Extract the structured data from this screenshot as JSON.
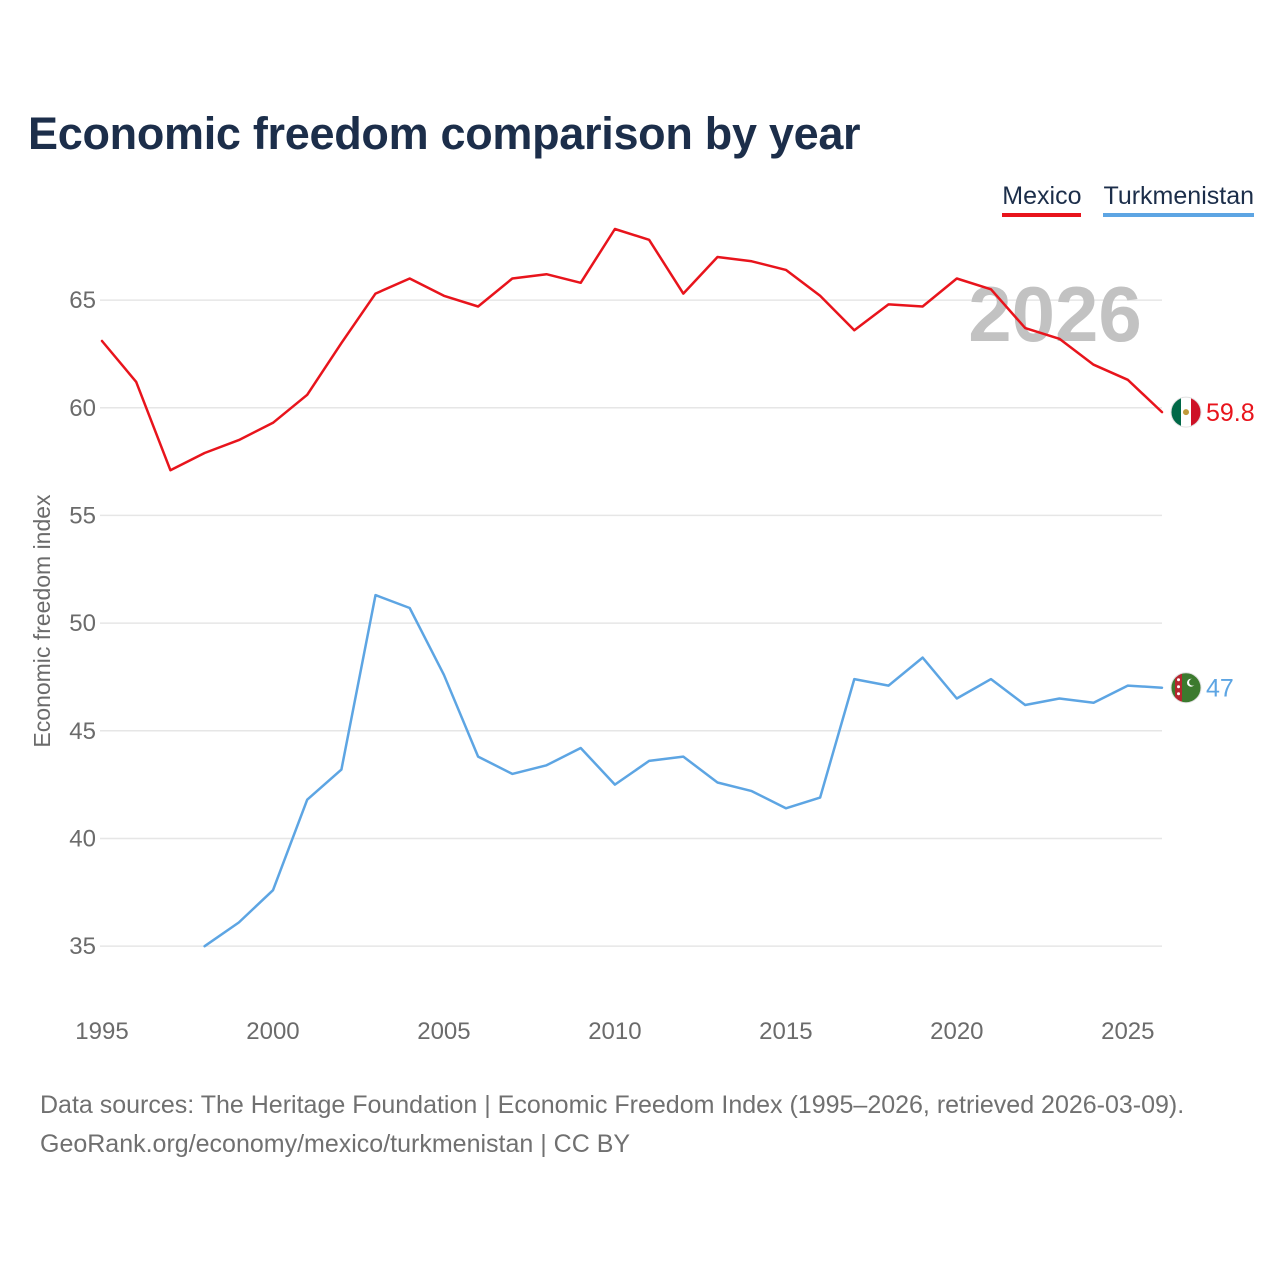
{
  "header": {
    "title": "Economic freedom comparison by year"
  },
  "legend": [
    {
      "label": "Mexico",
      "color": "#e8141c"
    },
    {
      "label": "Turkmenistan",
      "color": "#5da5e3"
    }
  ],
  "colors": {
    "mexico": "#e8141c",
    "turkmenistan": "#5da5e3",
    "grid": "#e6e6e6",
    "axis_text": "#6b6b6b",
    "title": "#1c2e4a"
  },
  "icons": {
    "mexico_flag": "mexico-flag-icon",
    "turkmenistan_flag": "turkmenistan-flag-icon"
  },
  "chart_data": {
    "type": "line",
    "title": "Economic freedom comparison by year",
    "xlabel": "",
    "ylabel": "Economic freedom index",
    "xlim": [
      1995,
      2026
    ],
    "ylim": [
      32.5,
      67
    ],
    "x_ticks": [
      1995,
      2000,
      2005,
      2010,
      2015,
      2020,
      2025
    ],
    "y_ticks": [
      35,
      40,
      45,
      50,
      55,
      60,
      65
    ],
    "grid": true,
    "year_indicator": "2026",
    "series": [
      {
        "name": "Mexico",
        "color": "#e8141c",
        "end_label": "59.8",
        "x": [
          1995,
          1996,
          1997,
          1998,
          1999,
          2000,
          2001,
          2002,
          2003,
          2004,
          2005,
          2006,
          2007,
          2008,
          2009,
          2010,
          2011,
          2012,
          2013,
          2014,
          2015,
          2016,
          2017,
          2018,
          2019,
          2020,
          2021,
          2022,
          2023,
          2024,
          2025,
          2026
        ],
        "values": [
          63.1,
          61.2,
          57.1,
          57.9,
          58.5,
          59.3,
          60.6,
          63.0,
          65.3,
          66.0,
          65.2,
          64.7,
          66.0,
          66.2,
          65.8,
          68.3,
          67.8,
          65.3,
          67.0,
          66.8,
          66.4,
          65.2,
          63.6,
          64.8,
          64.7,
          66.0,
          65.5,
          63.7,
          63.2,
          62.0,
          61.3,
          59.8
        ]
      },
      {
        "name": "Turkmenistan",
        "color": "#5da5e3",
        "end_label": "47",
        "x": [
          1998,
          1999,
          2000,
          2001,
          2002,
          2003,
          2004,
          2005,
          2006,
          2007,
          2008,
          2009,
          2010,
          2011,
          2012,
          2013,
          2014,
          2015,
          2016,
          2017,
          2018,
          2019,
          2020,
          2021,
          2022,
          2023,
          2024,
          2025,
          2026
        ],
        "values": [
          35.0,
          36.1,
          37.6,
          41.8,
          43.2,
          51.3,
          50.7,
          47.6,
          43.8,
          43.0,
          43.4,
          44.2,
          42.5,
          43.6,
          43.8,
          42.6,
          42.2,
          41.4,
          41.9,
          47.4,
          47.1,
          48.4,
          46.5,
          47.4,
          46.2,
          46.5,
          46.3,
          47.1,
          47.0
        ]
      }
    ]
  },
  "footer": {
    "line1": "Data sources: The Heritage Foundation | Economic Freedom Index (1995–2026, retrieved 2026-03-09).",
    "line2": "GeoRank.org/economy/mexico/turkmenistan | CC BY"
  }
}
